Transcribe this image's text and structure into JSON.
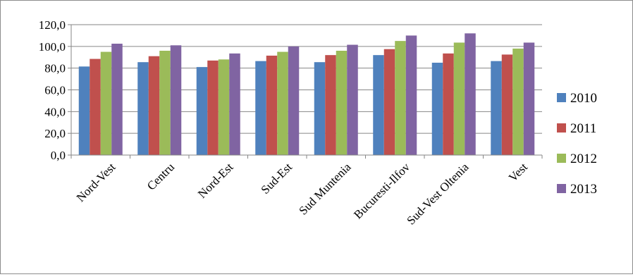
{
  "chart_data": {
    "type": "bar",
    "categories": [
      "Nord-Vest",
      "Centru",
      "Nord-Est",
      "Sud-Est",
      "Sud Muntenia",
      "Bucuresti-Ilfov",
      "Sud-Vest Oltenia",
      "Vest"
    ],
    "series": [
      {
        "name": "2010",
        "values": [
          81.5,
          85.5,
          81.0,
          86.5,
          85.5,
          92.0,
          85.0,
          86.5
        ]
      },
      {
        "name": "2011",
        "values": [
          88.5,
          91.0,
          87.0,
          91.5,
          92.0,
          97.5,
          93.5,
          92.5
        ]
      },
      {
        "name": "2012",
        "values": [
          95.0,
          96.0,
          88.0,
          95.0,
          96.0,
          105.0,
          103.5,
          98.0
        ]
      },
      {
        "name": "2013",
        "values": [
          102.5,
          101.0,
          93.5,
          100.0,
          101.5,
          110.0,
          112.0,
          103.5
        ]
      }
    ],
    "yticks": [
      "0,0",
      "20,0",
      "40,0",
      "60,0",
      "80,0",
      "100,0",
      "120,0"
    ],
    "ylim": [
      0,
      120
    ],
    "grid": true,
    "legend": "right",
    "colors": [
      "#4f81bd",
      "#c0504d",
      "#9bbb59",
      "#8064a2"
    ]
  }
}
